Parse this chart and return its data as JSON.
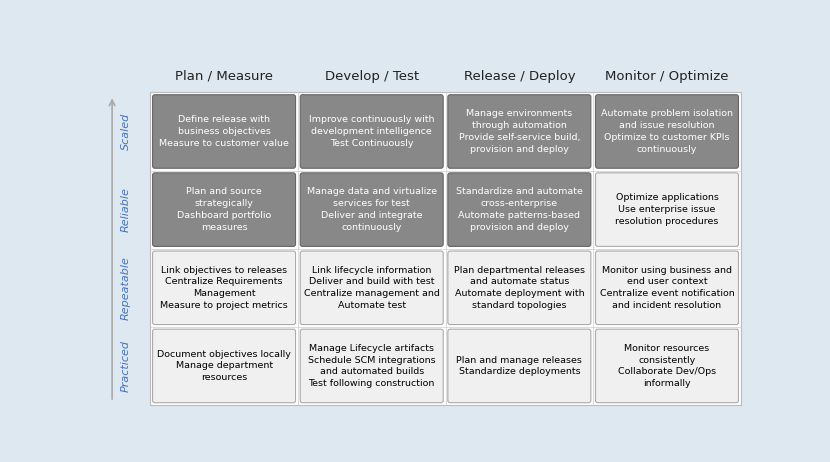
{
  "col_headers": [
    "Plan / Measure",
    "Develop / Test",
    "Release / Deploy",
    "Monitor / Optimize"
  ],
  "row_headers": [
    "Scaled",
    "Reliable",
    "Repeatable",
    "Practiced"
  ],
  "background_color": "#dde8f0",
  "grid_background": "#ffffff",
  "box_color_dark": "#888888",
  "box_color_light": "#f0f0f0",
  "box_color_lightblue": "#e8f0f8",
  "box_text_dark": "#ffffff",
  "box_text_light": "#000000",
  "header_text_color": "#222222",
  "row_label_color": "#4472c4",
  "arrow_color": "#aaaaaa",
  "cells": [
    [
      {
        "text": "Define release with\nbusiness objectives\nMeasure to customer value",
        "dark": true
      },
      {
        "text": "Improve continuously with\ndevelopment intelligence\nTest Continuously",
        "dark": true
      },
      {
        "text": "Manage environments\nthrough automation\nProvide self-service build,\nprovision and deploy",
        "dark": true
      },
      {
        "text": "Automate problem isolation\nand issue resolution\nOptimize to customer KPIs\ncontinuously",
        "dark": true
      }
    ],
    [
      {
        "text": "Plan and source\nstrategically\nDashboard portfolio\nmeasures",
        "dark": true
      },
      {
        "text": "Manage data and virtualize\nservices for test\nDeliver and integrate\ncontinuously",
        "dark": true
      },
      {
        "text": "Standardize and automate\ncross-enterprise\nAutomate patterns-based\nprovision and deploy",
        "dark": true
      },
      {
        "text": "Optimize applications\nUse enterprise issue\nresolution procedures",
        "dark": false
      }
    ],
    [
      {
        "text": "Link objectives to releases\nCentralize Requirements\nManagement\nMeasure to project metrics",
        "dark": false
      },
      {
        "text": "Link lifecycle information\nDeliver and build with test\nCentralize management and\nAutomate test",
        "dark": false
      },
      {
        "text": "Plan departmental releases\nand automate status\nAutomate deployment with\nstandard topologies",
        "dark": false
      },
      {
        "text": "Monitor using business and\nend user context\nCentralize event notification\nand incident resolution",
        "dark": false
      }
    ],
    [
      {
        "text": "Document objectives locally\nManage department\nresources",
        "dark": false
      },
      {
        "text": "Manage Lifecycle artifacts\nSchedule SCM integrations\nand automated builds\nTest following construction",
        "dark": false
      },
      {
        "text": "Plan and manage releases\nStandardize deployments",
        "dark": false
      },
      {
        "text": "Monitor resources\nconsistently\nCollaborate Dev/Ops\ninformally",
        "dark": false
      }
    ]
  ]
}
